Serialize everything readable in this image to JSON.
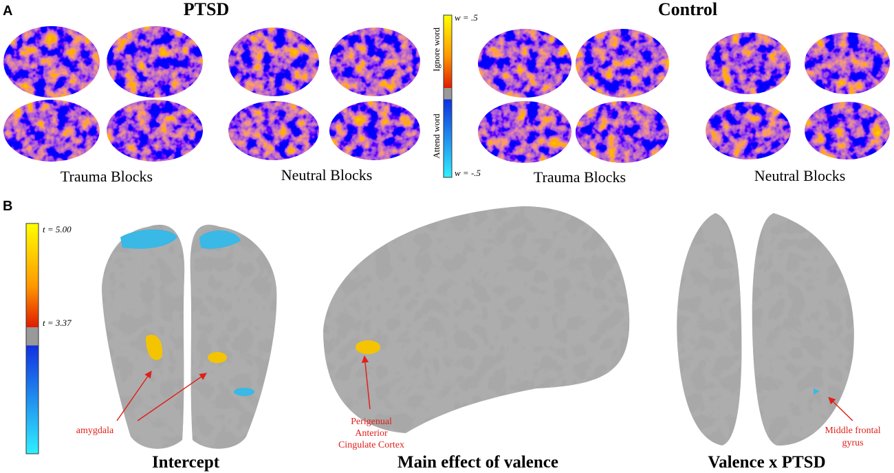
{
  "panel_a": {
    "label": "A",
    "groups": [
      {
        "title": "PTSD",
        "blocks": [
          "Trauma Blocks",
          "Neutral Blocks"
        ]
      },
      {
        "title": "Control",
        "blocks": [
          "Trauma Blocks",
          "Neutral Blocks"
        ]
      }
    ],
    "colorbar": {
      "top": "w = .5",
      "upper_label": "Ignore word",
      "lower_label": "Attend word",
      "bottom": "w = -.5"
    }
  },
  "panel_b": {
    "label": "B",
    "colorbar": {
      "top": "t = 5.00",
      "threshold": "t = 3.37"
    },
    "panels": [
      {
        "title": "Intercept",
        "annotation": [
          "amygdala"
        ]
      },
      {
        "title": "Main effect of valence",
        "annotation": [
          "Perigenual",
          "Anterior",
          "Cingulate Cortex"
        ]
      },
      {
        "title": "Valence x PTSD",
        "annotation": [
          "Middle frontal",
          "gyrus"
        ]
      }
    ]
  }
}
